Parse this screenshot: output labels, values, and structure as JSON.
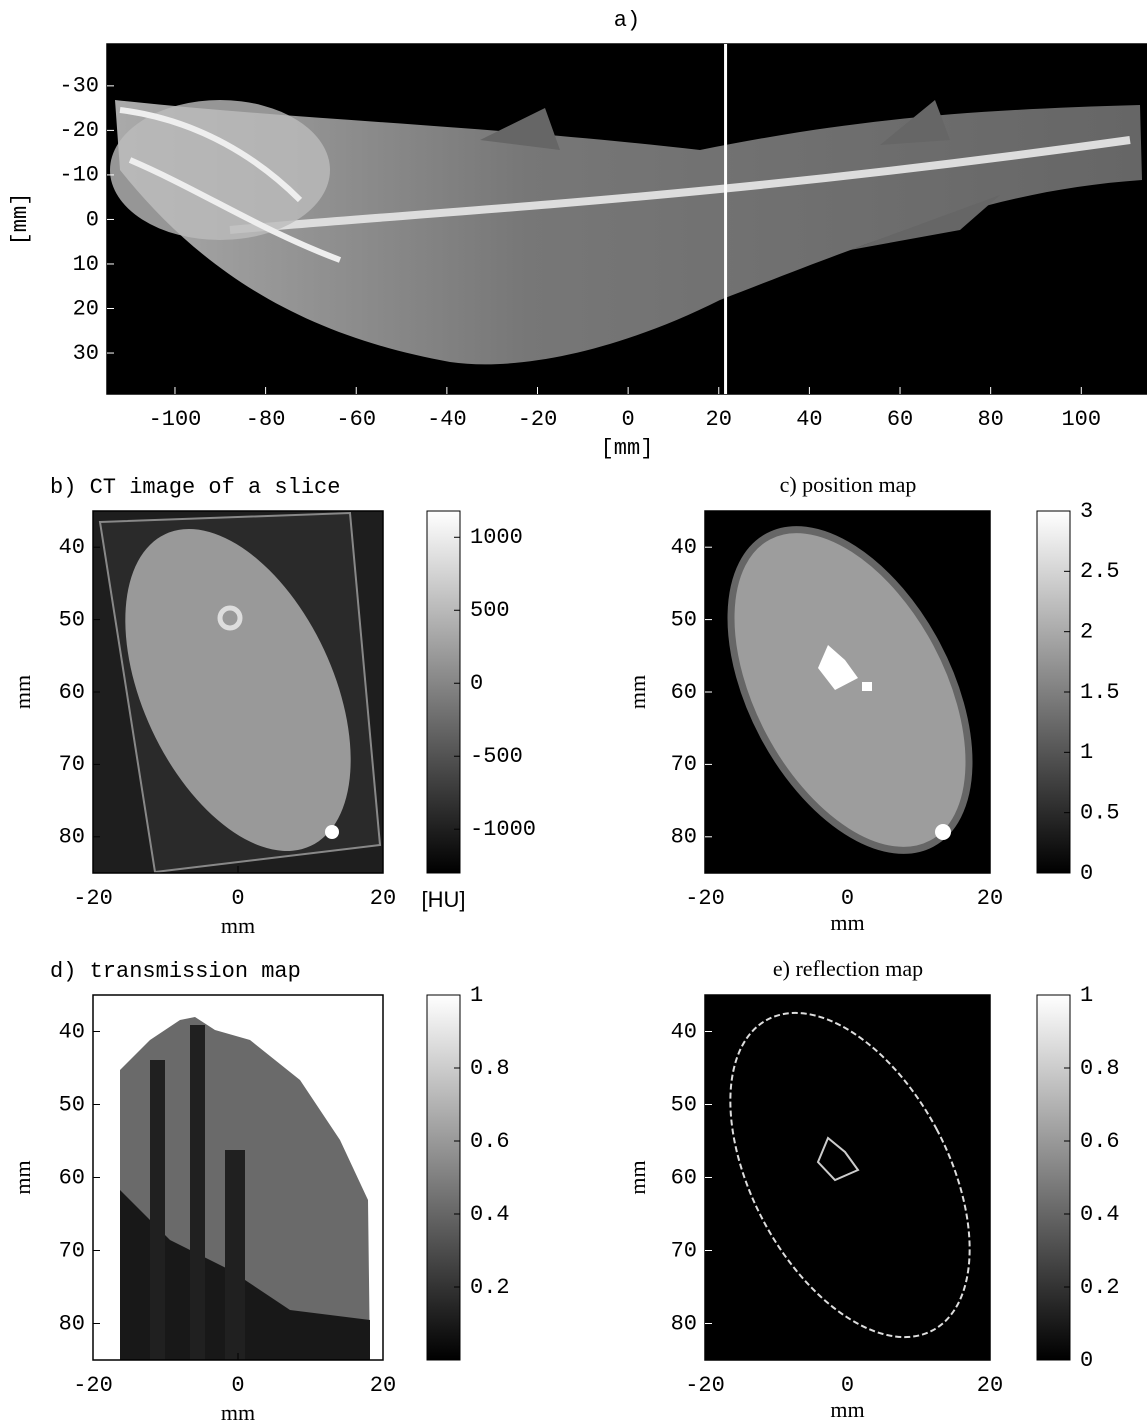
{
  "chart_data": [
    {
      "type": "image",
      "title": "a)",
      "xlabel": "[mm]",
      "ylabel": "[mm]",
      "xlim": [
        -115,
        114.5
      ],
      "xticks": [
        -100,
        -80,
        -60,
        -40,
        -20,
        0,
        20,
        40,
        60,
        80,
        100
      ],
      "ylim": [
        39.2,
        -39.4
      ],
      "yticks": [
        -30,
        -20,
        -10,
        0,
        10,
        20,
        30
      ],
      "marker_x": 21.5
    },
    {
      "type": "image",
      "title": "b) CT image of a slice",
      "xlabel": "mm",
      "ylabel": "mm",
      "xlim": [
        -20,
        20
      ],
      "xticks": [
        -20,
        0,
        20
      ],
      "ylim": [
        85,
        35
      ],
      "yticks": [
        40,
        50,
        60,
        70,
        80
      ],
      "colorbar": {
        "lim": [
          -1300,
          1180
        ],
        "ticks": [
          -1000,
          -500,
          0,
          500,
          1000
        ],
        "label": "[HU]"
      }
    },
    {
      "type": "image",
      "title": "c) position map",
      "xlabel": "mm",
      "ylabel": "mm",
      "xlim": [
        -20,
        20
      ],
      "xticks": [
        -20,
        0,
        20
      ],
      "ylim": [
        85,
        35
      ],
      "yticks": [
        40,
        50,
        60,
        70,
        80
      ],
      "colorbar": {
        "lim": [
          0,
          3
        ],
        "ticks": [
          0,
          0.5,
          1,
          1.5,
          2,
          2.5,
          3
        ]
      }
    },
    {
      "type": "image",
      "title": "d) transmission map",
      "xlabel": "mm",
      "ylabel": "mm",
      "xlim": [
        -20,
        20
      ],
      "xticks": [
        -20,
        0,
        20
      ],
      "ylim": [
        85,
        35
      ],
      "yticks": [
        40,
        50,
        60,
        70,
        80
      ],
      "colorbar": {
        "lim": [
          0,
          1
        ],
        "ticks": [
          0.2,
          0.4,
          0.6,
          0.8,
          1
        ]
      }
    },
    {
      "type": "image",
      "title": "e) reflection map",
      "xlabel": "mm",
      "ylabel": "mm",
      "xlim": [
        -20,
        20
      ],
      "xticks": [
        -20,
        0,
        20
      ],
      "ylim": [
        85,
        35
      ],
      "yticks": [
        40,
        50,
        60,
        70,
        80
      ],
      "colorbar": {
        "lim": [
          0,
          1
        ],
        "ticks": [
          0,
          0.2,
          0.4,
          0.6,
          0.8,
          1
        ]
      }
    }
  ]
}
